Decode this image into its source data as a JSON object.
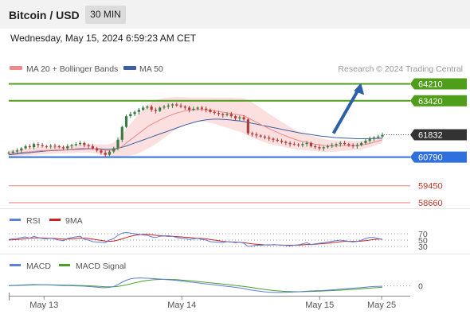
{
  "header": {
    "title": "Bitcoin / USD",
    "timeframe": "30 MIN"
  },
  "datetime": "Wednesday, May 15, 2024 6:59:23 AM CET",
  "colors": {
    "up": "#3a7d44",
    "down": "#b03b3b",
    "ma20": "#ef8a8a",
    "ma50": "#3b5ea6",
    "bands": "#fbdada",
    "resistance": "#4f9e1a",
    "support": "#2f6fde",
    "lower_levels": "#e87a7a",
    "current": "#333333",
    "arrow": "#2e5fa8",
    "rsi": "#5b7fdc",
    "rsi_ma": "#cc2222",
    "macd": "#5b7fdc",
    "macd_signal": "#4aa022"
  },
  "chart_data": [
    {
      "type": "line",
      "name": "price",
      "legend": [
        {
          "label": "MA 20 + Bollinger Bands",
          "color": "#ef8a8a"
        },
        {
          "label": "MA 50",
          "color": "#3b5ea6"
        }
      ],
      "watermark": "Research © 2024 Trading Central",
      "ylim": [
        58400,
        64600
      ],
      "x_labels": [
        "May 13",
        "May 14",
        "May 15",
        "May 25"
      ],
      "x_label_positions": [
        0.25,
        1.25,
        2.25,
        2.7
      ],
      "levels": [
        {
          "value": 64210,
          "label": "64210",
          "kind": "resistance"
        },
        {
          "value": 63420,
          "label": "63420",
          "kind": "resistance"
        },
        {
          "value": 61832,
          "label": "61832",
          "kind": "current"
        },
        {
          "value": 60790,
          "label": "60790",
          "kind": "support"
        },
        {
          "value": 59450,
          "label": "59450",
          "kind": "lower"
        },
        {
          "value": 58660,
          "label": "58660",
          "kind": "lower"
        }
      ],
      "arrow": {
        "from": [
          2.35,
          61900
        ],
        "to": [
          2.55,
          64250
        ]
      },
      "close": [
        61000,
        61050,
        61100,
        61200,
        61300,
        61250,
        61400,
        61350,
        61300,
        61280,
        61320,
        61300,
        61250,
        61200,
        61300,
        61350,
        61400,
        61450,
        61350,
        61300,
        61200,
        61100,
        61000,
        60900,
        61050,
        61200,
        61600,
        62200,
        62700,
        62800,
        62900,
        63000,
        63100,
        63150,
        63000,
        62950,
        63100,
        63150,
        63200,
        63250,
        63200,
        63150,
        63100,
        63000,
        63050,
        63100,
        63050,
        63000,
        62900,
        62850,
        62800,
        62750,
        62800,
        62700,
        62600,
        62650,
        62550,
        61900,
        61850,
        61800,
        61750,
        61700,
        61650,
        61600,
        61550,
        61500,
        61450,
        61400,
        61380,
        61350,
        61400,
        61450,
        61300,
        61250,
        61200,
        61250,
        61300,
        61350,
        61400,
        61450,
        61400,
        61350,
        61300,
        61350,
        61450,
        61550,
        61650,
        61700,
        61750,
        61832
      ],
      "ma20": [
        60950,
        60970,
        60990,
        61010,
        61030,
        61040,
        61060,
        61080,
        61090,
        61100,
        61110,
        61120,
        61130,
        61130,
        61140,
        61160,
        61180,
        61200,
        61200,
        61200,
        61190,
        61170,
        61140,
        61110,
        61100,
        61110,
        61180,
        61300,
        61450,
        61600,
        61750,
        61900,
        62050,
        62200,
        62320,
        62420,
        62520,
        62620,
        62700,
        62780,
        62850,
        62900,
        62950,
        62980,
        63000,
        63010,
        63010,
        63000,
        62980,
        62950,
        62920,
        62890,
        62860,
        62830,
        62790,
        62760,
        62720,
        62620,
        62520,
        62420,
        62320,
        62220,
        62120,
        62030,
        61940,
        61860,
        61780,
        61700,
        61630,
        61570,
        61520,
        61480,
        61440,
        61400,
        61370,
        61340,
        61320,
        61310,
        61310,
        61320,
        61330,
        61330,
        61330,
        61340,
        61360,
        61390,
        61430,
        61480,
        61540,
        61600
      ],
      "ma50": [
        60900,
        60920,
        60940,
        60960,
        60980,
        61000,
        61020,
        61040,
        61060,
        61080,
        61090,
        61100,
        61110,
        61120,
        61130,
        61140,
        61150,
        61160,
        61170,
        61180,
        61180,
        61180,
        61170,
        61160,
        61160,
        61170,
        61200,
        61250,
        61310,
        61380,
        61450,
        61520,
        61590,
        61660,
        61730,
        61800,
        61870,
        61940,
        62010,
        62080,
        62150,
        62220,
        62290,
        62350,
        62410,
        62460,
        62500,
        62530,
        62550,
        62560,
        62560,
        62550,
        62540,
        62520,
        62500,
        62480,
        62450,
        62410,
        62370,
        62330,
        62290,
        62250,
        62210,
        62170,
        62130,
        62090,
        62050,
        62010,
        61970,
        61930,
        61900,
        61870,
        61840,
        61810,
        61780,
        61760,
        61740,
        61720,
        61700,
        61690,
        61680,
        61670,
        61660,
        61650,
        61650,
        61650,
        61655,
        61660,
        61665,
        61670
      ],
      "band_width": [
        150,
        150,
        150,
        160,
        160,
        160,
        170,
        170,
        170,
        170,
        170,
        170,
        170,
        180,
        180,
        190,
        190,
        200,
        200,
        200,
        200,
        220,
        240,
        260,
        300,
        360,
        440,
        540,
        640,
        740,
        840,
        920,
        980,
        1020,
        1040,
        1020,
        980,
        930,
        870,
        810,
        750,
        690,
        640,
        600,
        570,
        560,
        560,
        570,
        590,
        610,
        640,
        670,
        700,
        730,
        760,
        790,
        820,
        830,
        820,
        800,
        770,
        740,
        700,
        660,
        620,
        580,
        540,
        500,
        460,
        430,
        400,
        380,
        360,
        340,
        320,
        300,
        280,
        270,
        260,
        250,
        240,
        230,
        220,
        210,
        200,
        190,
        180,
        170,
        160,
        150
      ]
    },
    {
      "type": "line",
      "name": "rsi",
      "legend": [
        {
          "label": "RSI",
          "color": "#5b7fdc"
        },
        {
          "label": "9MA",
          "color": "#cc2222"
        }
      ],
      "levels": [
        "70",
        "50",
        "30"
      ],
      "ylim": [
        10,
        90
      ],
      "rsi": [
        52,
        54,
        55,
        58,
        60,
        56,
        62,
        58,
        55,
        54,
        56,
        53,
        50,
        48,
        55,
        58,
        60,
        62,
        52,
        50,
        45,
        44,
        43,
        42,
        50,
        55,
        65,
        72,
        74,
        72,
        70,
        68,
        66,
        65,
        60,
        58,
        62,
        63,
        64,
        62,
        58,
        56,
        55,
        52,
        54,
        56,
        52,
        50,
        45,
        44,
        43,
        42,
        45,
        44,
        42,
        44,
        40,
        30,
        32,
        34,
        33,
        35,
        34,
        36,
        35,
        34,
        33,
        32,
        34,
        35,
        38,
        42,
        36,
        38,
        40,
        42,
        44,
        46,
        48,
        50,
        48,
        46,
        44,
        46,
        50,
        55,
        58,
        58,
        55,
        52
      ],
      "rsi_ma": [
        50,
        51,
        52,
        53,
        55,
        56,
        57,
        57,
        57,
        56,
        56,
        55,
        54,
        53,
        53,
        54,
        55,
        56,
        56,
        55,
        53,
        51,
        49,
        47,
        46,
        47,
        50,
        54,
        58,
        62,
        65,
        67,
        68,
        68,
        67,
        65,
        64,
        63,
        62,
        62,
        61,
        60,
        59,
        58,
        57,
        56,
        55,
        54,
        52,
        50,
        48,
        46,
        45,
        44,
        44,
        43,
        42,
        40,
        38,
        37,
        36,
        35,
        35,
        35,
        35,
        34,
        34,
        34,
        34,
        34,
        35,
        36,
        36,
        37,
        38,
        39,
        40,
        42,
        43,
        45,
        46,
        46,
        46,
        46,
        47,
        48,
        50,
        52,
        53,
        53
      ]
    },
    {
      "type": "line",
      "name": "macd",
      "legend": [
        {
          "label": "MACD",
          "color": "#5b7fdc"
        },
        {
          "label": "MACD Signal",
          "color": "#4aa022"
        }
      ],
      "zero_label": "0",
      "ylim": [
        -250,
        350
      ],
      "macd": [
        10,
        15,
        20,
        25,
        30,
        35,
        40,
        38,
        35,
        30,
        25,
        20,
        15,
        10,
        8,
        5,
        0,
        -5,
        -10,
        -20,
        -30,
        -40,
        -50,
        -55,
        -45,
        -20,
        40,
        110,
        170,
        210,
        230,
        240,
        235,
        230,
        225,
        215,
        205,
        195,
        185,
        175,
        165,
        150,
        135,
        120,
        105,
        90,
        75,
        60,
        45,
        30,
        15,
        0,
        -15,
        -30,
        -45,
        -60,
        -80,
        -110,
        -130,
        -150,
        -165,
        -180,
        -190,
        -195,
        -200,
        -200,
        -195,
        -190,
        -185,
        -180,
        -170,
        -160,
        -155,
        -150,
        -145,
        -140,
        -130,
        -120,
        -110,
        -100,
        -90,
        -80,
        -70,
        -60,
        -50,
        -40,
        -30,
        -20,
        -15,
        -10
      ],
      "macd_signal": [
        5,
        8,
        12,
        16,
        20,
        24,
        28,
        30,
        31,
        31,
        30,
        29,
        27,
        24,
        21,
        18,
        15,
        11,
        7,
        2,
        -4,
        -11,
        -19,
        -26,
        -30,
        -28,
        -15,
        5,
        30,
        60,
        90,
        120,
        145,
        165,
        180,
        190,
        195,
        197,
        196,
        192,
        186,
        178,
        168,
        157,
        145,
        132,
        119,
        105,
        92,
        79,
        66,
        53,
        40,
        26,
        12,
        -2,
        -17,
        -35,
        -54,
        -73,
        -91,
        -109,
        -125,
        -139,
        -151,
        -161,
        -168,
        -173,
        -176,
        -177,
        -176,
        -173,
        -169,
        -165,
        -160,
        -155,
        -149,
        -143,
        -136,
        -129,
        -121,
        -113,
        -105,
        -96,
        -87,
        -78,
        -69,
        -59,
        -50,
        -42
      ]
    }
  ]
}
